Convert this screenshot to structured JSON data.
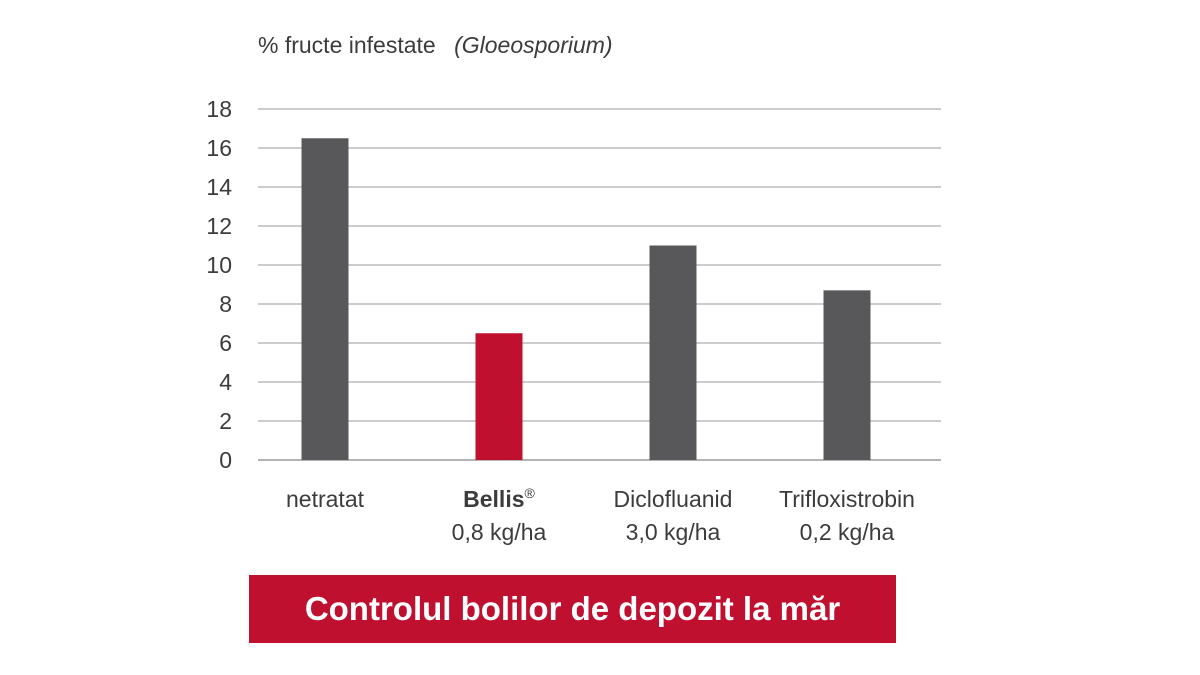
{
  "colors": {
    "default_bar": "#58585a",
    "highlight_bar": "#c0102f",
    "grid": "#9a9a9a",
    "text": "#3c3c3c",
    "banner": "#c0102f"
  },
  "banner": {
    "text": "Controlul bolilor de depozit la măr"
  },
  "chart_data": {
    "type": "bar",
    "title": "Controlul bolilor de depozit la măr",
    "ylabel_prefix": "% fructe infestate",
    "ylabel_italic": "(Gloeosporium)",
    "xlabel": "",
    "ylim": [
      0,
      18
    ],
    "yticks": [
      0,
      2,
      4,
      6,
      8,
      10,
      12,
      14,
      16,
      18
    ],
    "grid": true,
    "categories": [
      {
        "name": "netratat",
        "superscript": "",
        "dose": "",
        "bold": false
      },
      {
        "name": "Bellis",
        "superscript": "®",
        "dose": "0,8 kg/ha",
        "bold": true
      },
      {
        "name": "Diclofluanid",
        "superscript": "",
        "dose": "3,0 kg/ha",
        "bold": false
      },
      {
        "name": "Trifloxistrobin",
        "superscript": "",
        "dose": "0,2 kg/ha",
        "bold": false
      }
    ],
    "values": [
      16.5,
      6.5,
      11.0,
      8.7
    ],
    "highlight_index": 1
  }
}
